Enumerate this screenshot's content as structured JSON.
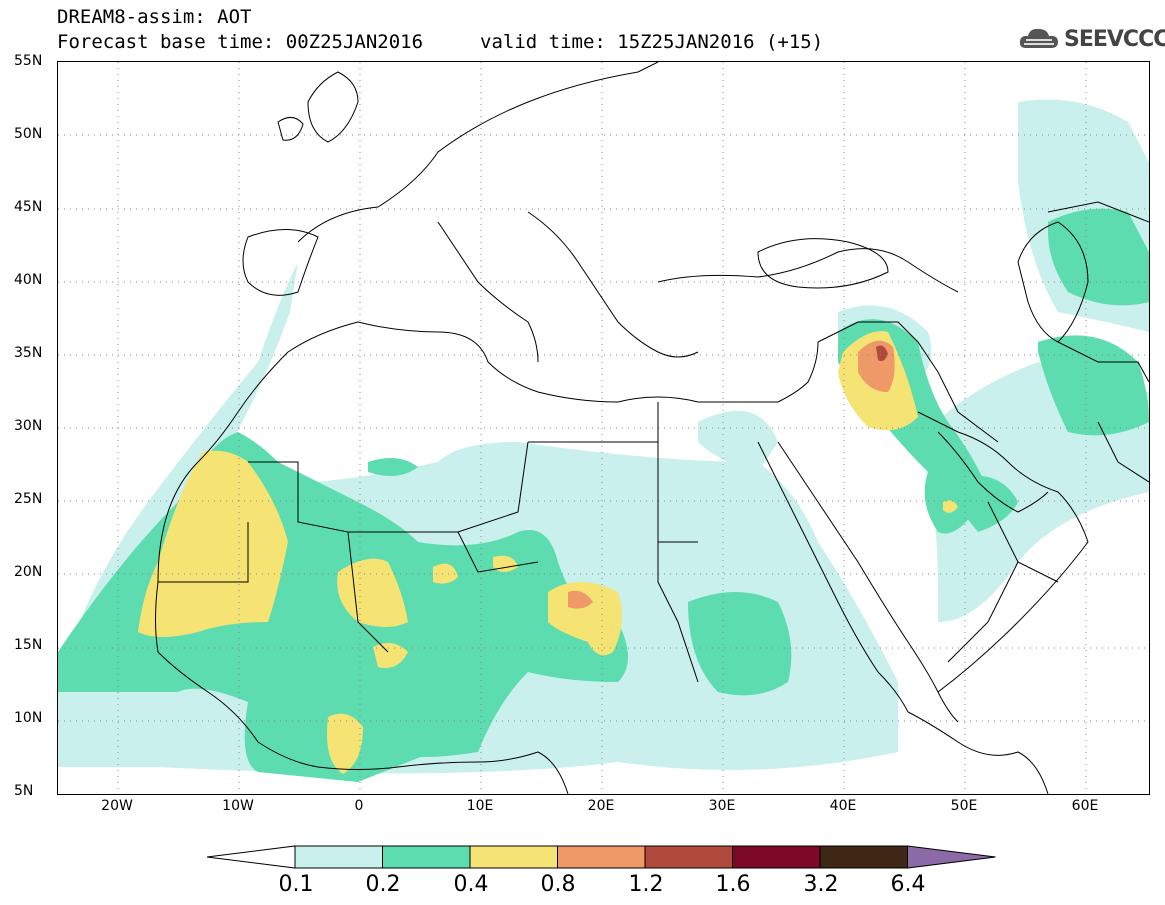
{
  "header": {
    "title_line1": "DREAM8-assim: AOT",
    "title_line2": "Forecast base time: 00Z25JAN2016",
    "valid_time": "valid time: 15Z25JAN2016 (+15)",
    "logo_text": "SEEVCCC"
  },
  "axes": {
    "lat_labels": [
      "55N",
      "50N",
      "45N",
      "40N",
      "35N",
      "30N",
      "25N",
      "20N",
      "15N",
      "10N",
      "5N"
    ],
    "lon_labels": [
      "20W",
      "10W",
      "0",
      "10E",
      "20E",
      "30E",
      "40E",
      "50E",
      "60E"
    ]
  },
  "legend": {
    "labels": [
      "0.1",
      "0.2",
      "0.4",
      "0.8",
      "1.2",
      "1.6",
      "3.2",
      "6.4"
    ],
    "colors": [
      "#ffffff",
      "#c9f0ec",
      "#5ddcb0",
      "#f5e373",
      "#ef9969",
      "#b04a3c",
      "#7c0a26",
      "#3e2714",
      "#8c6aa8"
    ]
  },
  "colors": {
    "aot_01_02": "#c9f0ec",
    "aot_02_04": "#5ddcb0",
    "aot_04_08": "#f5e373",
    "aot_08_12": "#ef9969",
    "aot_12_16": "#b04a3c"
  }
}
